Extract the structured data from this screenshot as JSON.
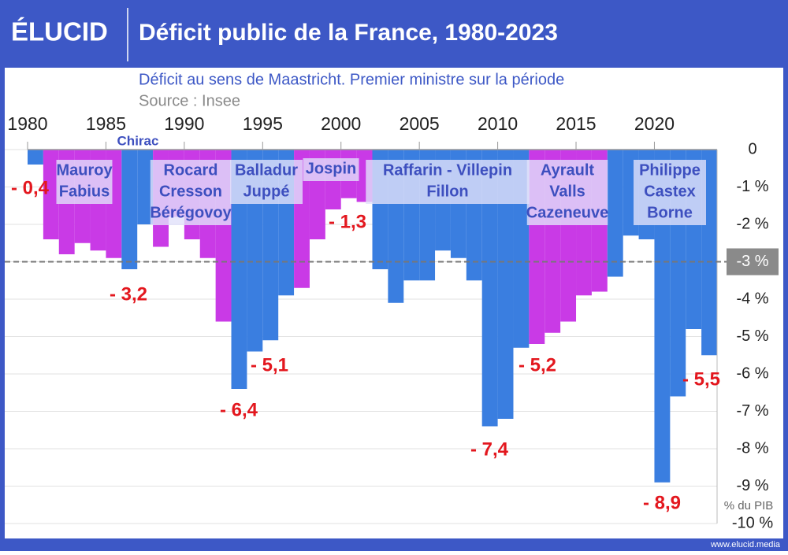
{
  "header": {
    "logo": "ÉLUCID"
  },
  "footer": {
    "site": "www.elucid.media"
  },
  "chart_data": {
    "type": "bar",
    "title": "Déficit public de la France, 1980-2023",
    "subtitle": "Déficit au sens de Maastricht. Premier ministre sur la période",
    "source": "Source : Insee",
    "y_unit_label": "% du PIB",
    "x": [
      1980,
      1981,
      1982,
      1983,
      1984,
      1985,
      1986,
      1987,
      1988,
      1989,
      1990,
      1991,
      1992,
      1993,
      1994,
      1995,
      1996,
      1997,
      1998,
      1999,
      2000,
      2001,
      2002,
      2003,
      2004,
      2005,
      2006,
      2007,
      2008,
      2009,
      2010,
      2011,
      2012,
      2013,
      2014,
      2015,
      2016,
      2017,
      2018,
      2019,
      2020,
      2021,
      2022,
      2023
    ],
    "values": [
      -0.4,
      -2.4,
      -2.8,
      -2.5,
      -2.7,
      -2.9,
      -3.2,
      -2.0,
      -2.6,
      -1.8,
      -2.4,
      -2.9,
      -4.6,
      -6.4,
      -5.4,
      -5.1,
      -3.9,
      -3.7,
      -2.4,
      -1.6,
      -1.3,
      -1.4,
      -3.2,
      -4.1,
      -3.5,
      -3.5,
      -2.7,
      -2.9,
      -3.5,
      -7.4,
      -7.2,
      -5.3,
      -5.2,
      -4.9,
      -4.6,
      -3.9,
      -3.8,
      -3.4,
      -2.3,
      -2.4,
      -8.9,
      -6.6,
      -4.8,
      -5.5
    ],
    "value_labels": [
      "- 0,4",
      null,
      null,
      null,
      null,
      null,
      "- 3,2",
      null,
      null,
      null,
      null,
      null,
      null,
      "- 6,4",
      null,
      "- 5,1",
      null,
      null,
      null,
      null,
      "- 1,3",
      null,
      null,
      null,
      null,
      null,
      null,
      null,
      null,
      "- 7,4",
      null,
      null,
      "- 5,2",
      null,
      null,
      null,
      null,
      null,
      null,
      null,
      "- 8,9",
      null,
      null,
      "- 5,5"
    ],
    "colors": [
      "#3a7ee0",
      "#c93ae6",
      "#c93ae6",
      "#c93ae6",
      "#c93ae6",
      "#c93ae6",
      "#3a7ee0",
      "#3a7ee0",
      "#c93ae6",
      "#c93ae6",
      "#c93ae6",
      "#c93ae6",
      "#c93ae6",
      "#3a7ee0",
      "#3a7ee0",
      "#3a7ee0",
      "#3a7ee0",
      "#c93ae6",
      "#c93ae6",
      "#c93ae6",
      "#c93ae6",
      "#c93ae6",
      "#3a7ee0",
      "#3a7ee0",
      "#3a7ee0",
      "#3a7ee0",
      "#3a7ee0",
      "#3a7ee0",
      "#3a7ee0",
      "#3a7ee0",
      "#3a7ee0",
      "#3a7ee0",
      "#c93ae6",
      "#c93ae6",
      "#c93ae6",
      "#c93ae6",
      "#c93ae6",
      "#3a7ee0",
      "#3a7ee0",
      "#3a7ee0",
      "#3a7ee0",
      "#3a7ee0",
      "#3a7ee0",
      "#3a7ee0"
    ],
    "xlim": [
      1980,
      2024
    ],
    "xticks": [
      1980,
      1985,
      1990,
      1995,
      2000,
      2005,
      2010,
      2015,
      2020
    ],
    "ylim": [
      -10,
      0
    ],
    "yticks": [
      0,
      {
        "value": -1,
        "label": "-1 %"
      },
      {
        "value": -2,
        "label": "-2 %"
      },
      {
        "value": -3,
        "label": "-3 %"
      },
      {
        "value": -4,
        "label": "-4 %"
      },
      {
        "value": -5,
        "label": "-5 %"
      },
      {
        "value": -6,
        "label": "-6 %"
      },
      {
        "value": -7,
        "label": "-7 %"
      },
      {
        "value": -8,
        "label": "-8 %"
      },
      {
        "value": -9,
        "label": "-9 %"
      },
      {
        "value": -10,
        "label": "-10 %"
      }
    ],
    "reference_line": {
      "value": -3
    },
    "grid": true,
    "periods": [
      {
        "lines": [
          "Mauroy",
          "Fabius"
        ]
      },
      {
        "lines": [
          "Chirac"
        ]
      },
      {
        "lines": [
          "Rocard",
          "Cresson",
          "Bérégovoy"
        ]
      },
      {
        "lines": [
          "Balladur",
          "Juppé"
        ]
      },
      {
        "lines": [
          "Jospin"
        ]
      },
      {
        "lines": [
          "Raffarin - Villepin",
          "Fillon"
        ]
      },
      {
        "lines": [
          "Ayrault",
          "Valls",
          "Cazeneuve"
        ]
      },
      {
        "lines": [
          "Philippe",
          "Castex",
          "Borne"
        ]
      }
    ]
  }
}
